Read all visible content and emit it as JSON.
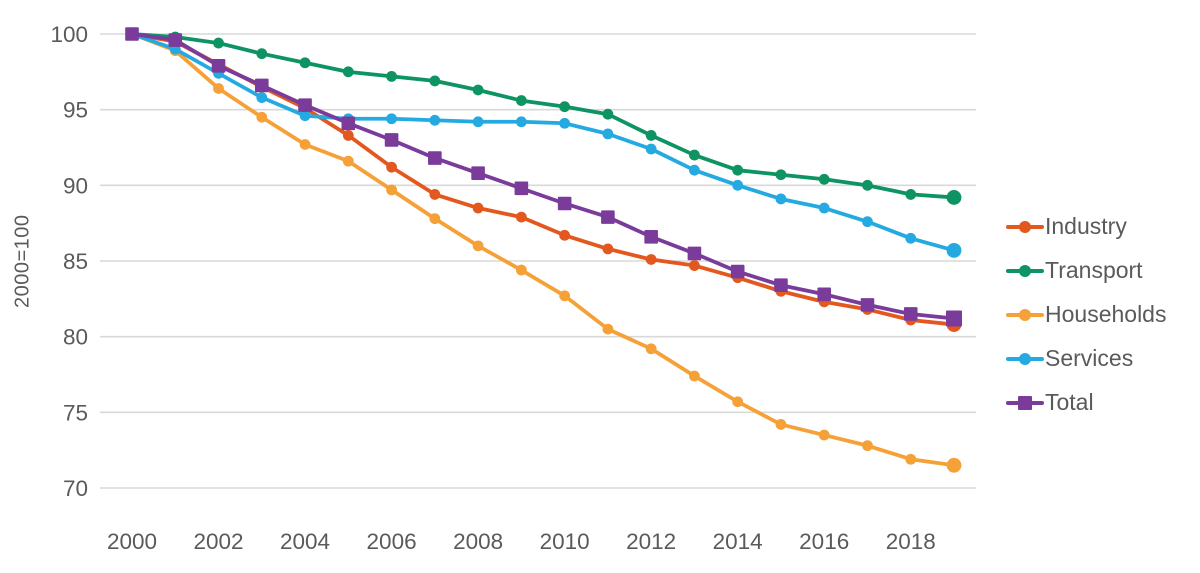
{
  "chart_data": {
    "type": "line",
    "title": "",
    "xlabel": "",
    "ylabel": "2000=100",
    "x": [
      2000,
      2001,
      2002,
      2003,
      2004,
      2005,
      2006,
      2007,
      2008,
      2009,
      2010,
      2011,
      2012,
      2013,
      2014,
      2015,
      2016,
      2017,
      2018,
      2019
    ],
    "x_tick_step": 2,
    "ylim": [
      70,
      100
    ],
    "yticks": [
      70,
      75,
      80,
      85,
      90,
      95,
      100
    ],
    "grid": "horizontal-only",
    "legend_position": "right",
    "series": [
      {
        "name": "Industry",
        "color": "#e2581e",
        "marker": "circle",
        "values": [
          100,
          99.5,
          98.0,
          96.5,
          95.1,
          93.3,
          91.2,
          89.4,
          88.5,
          87.9,
          86.7,
          85.8,
          85.1,
          84.7,
          83.9,
          83.0,
          82.3,
          81.8,
          81.1,
          80.8
        ]
      },
      {
        "name": "Transport",
        "color": "#0e9463",
        "marker": "circle",
        "values": [
          100,
          99.8,
          99.4,
          98.7,
          98.1,
          97.5,
          97.2,
          96.9,
          96.3,
          95.6,
          95.2,
          94.7,
          93.3,
          92.0,
          91.0,
          90.7,
          90.4,
          90.0,
          89.4,
          89.2
        ]
      },
      {
        "name": "Households",
        "color": "#f6a138",
        "marker": "circle",
        "values": [
          100,
          98.9,
          96.4,
          94.5,
          92.7,
          91.6,
          89.7,
          87.8,
          86.0,
          84.4,
          82.7,
          80.5,
          79.2,
          77.4,
          75.7,
          74.2,
          73.5,
          72.8,
          71.9,
          71.5
        ]
      },
      {
        "name": "Services",
        "color": "#24aae1",
        "marker": "circle",
        "values": [
          100,
          99.0,
          97.4,
          95.8,
          94.6,
          94.4,
          94.4,
          94.3,
          94.2,
          94.2,
          94.1,
          93.4,
          92.4,
          91.0,
          90.0,
          89.1,
          88.5,
          87.6,
          86.5,
          85.7
        ]
      },
      {
        "name": "Total",
        "color": "#7a3b9b",
        "marker": "square",
        "values": [
          100,
          99.6,
          97.9,
          96.6,
          95.3,
          94.1,
          93.0,
          91.8,
          90.8,
          89.8,
          88.8,
          87.9,
          86.6,
          85.5,
          84.3,
          83.4,
          82.8,
          82.1,
          81.5,
          81.2
        ]
      }
    ]
  },
  "colors": {
    "background": "#ffffff",
    "axis_text": "#595a5c",
    "gridline": "#d9d9d9"
  }
}
